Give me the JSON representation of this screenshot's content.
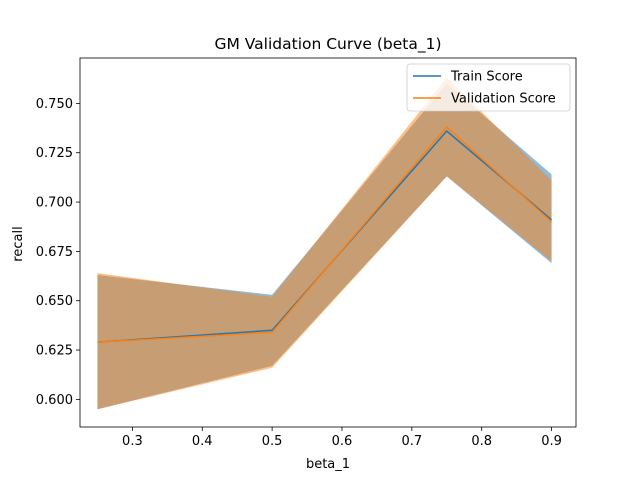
{
  "chart_data": {
    "type": "line",
    "title": "GM Validation Curve (beta_1)",
    "xlabel": "beta_1",
    "ylabel": "recall",
    "xlim": [
      0.225,
      0.935
    ],
    "ylim": [
      0.586,
      0.773
    ],
    "xticks": [
      0.3,
      0.4,
      0.5,
      0.6,
      0.7,
      0.8,
      0.9
    ],
    "yticks": [
      0.6,
      0.625,
      0.65,
      0.675,
      0.7,
      0.725,
      0.75
    ],
    "x": [
      0.25,
      0.5,
      0.75,
      0.9
    ],
    "grid": false,
    "legend_position": "top-right",
    "series": [
      {
        "name": "Train Score",
        "color": "#1f77b4",
        "values": [
          0.629,
          0.635,
          0.736,
          0.691
        ],
        "band_upper": [
          0.663,
          0.653,
          0.76,
          0.714
        ],
        "band_lower": [
          0.595,
          0.617,
          0.713,
          0.669
        ]
      },
      {
        "name": "Validation Score",
        "color": "#ff7f0e",
        "values": [
          0.629,
          0.634,
          0.738,
          0.69
        ],
        "band_upper": [
          0.664,
          0.652,
          0.763,
          0.711
        ],
        "band_lower": [
          0.595,
          0.616,
          0.713,
          0.67
        ]
      }
    ]
  }
}
